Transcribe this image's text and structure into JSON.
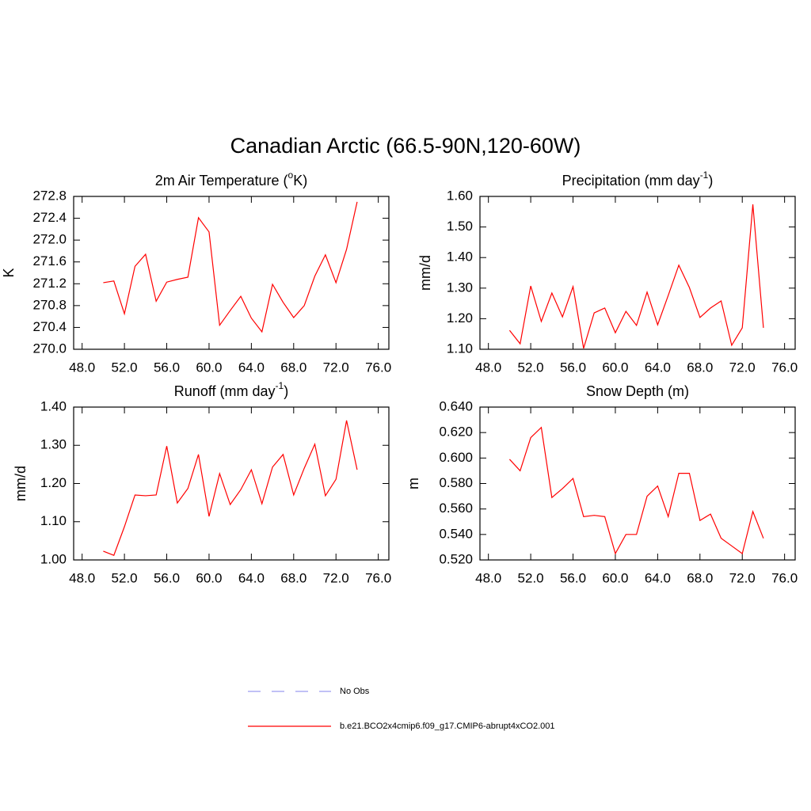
{
  "page": {
    "title": "Canadian Arctic (66.5-90N,120-60W)"
  },
  "legend": [
    {
      "name": "No Obs",
      "color": "#9c9cf0",
      "dashed": true
    },
    {
      "name": "b.e21.BCO2x4cmip6.f09_g17.CMIP6-abrupt4xCO2.001",
      "color": "#ff0000",
      "dashed": false
    }
  ],
  "chart_data": [
    {
      "type": "line",
      "title": [
        "2m Air Temperature (",
        "o",
        "K)"
      ],
      "y_label": "K",
      "color": "#ff0000",
      "x": [
        50,
        51,
        52,
        53,
        54,
        55,
        56,
        57,
        58,
        59,
        60,
        61,
        62,
        63,
        64,
        65,
        66,
        67,
        68,
        69,
        70,
        71,
        72,
        73,
        74
      ],
      "values": [
        271.22,
        271.25,
        270.65,
        271.52,
        271.74,
        270.88,
        271.23,
        271.28,
        271.32,
        272.41,
        272.15,
        270.44,
        270.71,
        270.97,
        270.57,
        270.32,
        271.19,
        270.86,
        270.58,
        270.8,
        271.34,
        271.73,
        271.22,
        271.83,
        272.7
      ],
      "xlim": [
        47.2,
        77.0
      ],
      "xticks": [
        {
          "value": 48,
          "label": "48.0"
        },
        {
          "value": 52,
          "label": "52.0"
        },
        {
          "value": 56,
          "label": "56.0"
        },
        {
          "value": 60,
          "label": "60.0"
        },
        {
          "value": 64,
          "label": "64.0"
        },
        {
          "value": 68,
          "label": "68.0"
        },
        {
          "value": 72,
          "label": "72.0"
        },
        {
          "value": 76,
          "label": "76.0"
        }
      ],
      "ylim": [
        270.0,
        272.8
      ],
      "yticks": [
        {
          "value": 270,
          "label": "270.0"
        },
        270.4,
        270.8,
        271.2,
        271.6,
        {
          "value": 272,
          "label": "272.0"
        },
        272.4,
        272.8
      ]
    },
    {
      "type": "line",
      "title": [
        "Precipitation (mm day",
        "-1",
        ")"
      ],
      "y_label": "mm/d",
      "color": "#ff0000",
      "x": [
        50,
        51,
        52,
        53,
        54,
        55,
        56,
        57,
        58,
        59,
        60,
        61,
        62,
        63,
        64,
        65,
        66,
        67,
        68,
        69,
        70,
        71,
        72,
        73,
        74
      ],
      "values": [
        1.162,
        1.118,
        1.307,
        1.191,
        1.284,
        1.206,
        1.305,
        1.103,
        1.219,
        1.235,
        1.154,
        1.224,
        1.178,
        1.287,
        1.18,
        1.276,
        1.375,
        1.302,
        1.204,
        1.235,
        1.258,
        1.113,
        1.17,
        1.574,
        1.17
      ],
      "xlim": [
        47.2,
        77.0
      ],
      "xticks": [
        {
          "value": 48,
          "label": "48.0"
        },
        {
          "value": 52,
          "label": "52.0"
        },
        {
          "value": 56,
          "label": "56.0"
        },
        {
          "value": 60,
          "label": "60.0"
        },
        {
          "value": 64,
          "label": "64.0"
        },
        {
          "value": 68,
          "label": "68.0"
        },
        {
          "value": 72,
          "label": "72.0"
        },
        {
          "value": 76,
          "label": "76.0"
        }
      ],
      "ylim": [
        1.1,
        1.6
      ],
      "yticks": [
        {
          "value": 1.1,
          "label": "1.10"
        },
        {
          "value": 1.2,
          "label": "1.20"
        },
        {
          "value": 1.3,
          "label": "1.30"
        },
        {
          "value": 1.4,
          "label": "1.40"
        },
        {
          "value": 1.5,
          "label": "1.50"
        },
        {
          "value": 1.6,
          "label": "1.60"
        }
      ]
    },
    {
      "type": "line",
      "title": [
        "Runoff (mm day",
        "-1",
        ")"
      ],
      "y_label": "mm/d",
      "color": "#ff0000",
      "x": [
        50,
        51,
        52,
        53,
        54,
        55,
        56,
        57,
        58,
        59,
        60,
        61,
        62,
        63,
        64,
        65,
        66,
        67,
        68,
        69,
        70,
        71,
        72,
        73,
        74
      ],
      "values": [
        1.023,
        1.012,
        1.087,
        1.17,
        1.168,
        1.17,
        1.298,
        1.149,
        1.187,
        1.276,
        1.114,
        1.226,
        1.145,
        1.184,
        1.236,
        1.147,
        1.243,
        1.276,
        1.17,
        1.24,
        1.303,
        1.168,
        1.211,
        1.365,
        1.236
      ],
      "xlim": [
        47.2,
        77.0
      ],
      "xticks": [
        {
          "value": 48,
          "label": "48.0"
        },
        {
          "value": 52,
          "label": "52.0"
        },
        {
          "value": 56,
          "label": "56.0"
        },
        {
          "value": 60,
          "label": "60.0"
        },
        {
          "value": 64,
          "label": "64.0"
        },
        {
          "value": 68,
          "label": "68.0"
        },
        {
          "value": 72,
          "label": "72.0"
        },
        {
          "value": 76,
          "label": "76.0"
        }
      ],
      "ylim": [
        1.0,
        1.4
      ],
      "yticks": [
        {
          "value": 1.0,
          "label": "1.00"
        },
        {
          "value": 1.1,
          "label": "1.10"
        },
        {
          "value": 1.2,
          "label": "1.20"
        },
        {
          "value": 1.3,
          "label": "1.30"
        },
        {
          "value": 1.4,
          "label": "1.40"
        }
      ]
    },
    {
      "type": "line",
      "title": [
        "Snow Depth (m)"
      ],
      "y_label": "m",
      "color": "#ff0000",
      "x": [
        50,
        51,
        52,
        53,
        54,
        55,
        56,
        57,
        58,
        59,
        60,
        61,
        62,
        63,
        64,
        65,
        66,
        67,
        68,
        69,
        70,
        71,
        72,
        73,
        74
      ],
      "values": [
        0.599,
        0.59,
        0.616,
        0.624,
        0.569,
        0.576,
        0.584,
        0.554,
        0.555,
        0.554,
        0.525,
        0.54,
        0.54,
        0.57,
        0.578,
        0.554,
        0.588,
        0.588,
        0.551,
        0.556,
        0.537,
        0.531,
        0.525,
        0.558,
        0.537
      ],
      "xlim": [
        47.2,
        77.0
      ],
      "xticks": [
        {
          "value": 48,
          "label": "48.0"
        },
        {
          "value": 52,
          "label": "52.0"
        },
        {
          "value": 56,
          "label": "56.0"
        },
        {
          "value": 60,
          "label": "60.0"
        },
        {
          "value": 64,
          "label": "64.0"
        },
        {
          "value": 68,
          "label": "68.0"
        },
        {
          "value": 72,
          "label": "72.0"
        },
        {
          "value": 76,
          "label": "76.0"
        }
      ],
      "ylim": [
        0.52,
        0.64
      ],
      "yticks": [
        {
          "value": 0.52,
          "label": "0.520"
        },
        {
          "value": 0.54,
          "label": "0.540"
        },
        {
          "value": 0.56,
          "label": "0.560"
        },
        {
          "value": 0.58,
          "label": "0.580"
        },
        {
          "value": 0.6,
          "label": "0.600"
        },
        {
          "value": 0.62,
          "label": "0.620"
        },
        {
          "value": 0.64,
          "label": "0.640"
        }
      ]
    }
  ]
}
